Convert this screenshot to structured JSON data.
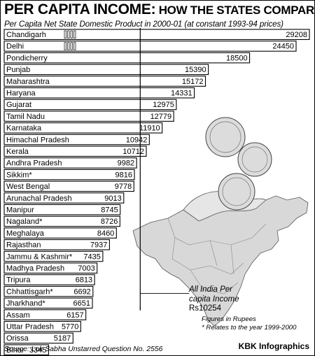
{
  "title_big": "PER CAPITA INCOME:",
  "title_small": " HOW THE STATES COMPARE",
  "subtitle": "Per Capita Net State Domestic Product in 2000-01 (at constant 1993-94 prices)",
  "avg_note": {
    "line1": "All India Per",
    "line2": "capita Income",
    "line3": "Rs10254"
  },
  "figures_note": {
    "line1": "Figures in Rupees",
    "line2": "* Relates to the year 1999-2000"
  },
  "source": "Source: Lok Sabha Unstarred Question No. 2556",
  "credit": "KBK Infographics",
  "chart_data": {
    "type": "bar",
    "orientation": "horizontal",
    "title": "PER CAPITA INCOME: HOW THE STATES COMPARE",
    "subtitle": "Per Capita Net State Domestic Product in 2000-01 (at constant 1993-94 prices)",
    "units": "Figures in Rupees",
    "reference_line": {
      "label": "All India Per capita Income",
      "value": 10254
    },
    "categories": [
      "Chandigarh",
      "Delhi",
      "Pondicherry",
      "Punjab",
      "Maharashtra",
      "Haryana",
      "Gujarat",
      "Tamil Nadu",
      "Karnataka",
      "Himachal Pradesh",
      "Kerala",
      "Andhra Pradesh",
      "Sikkim*",
      "West Bengal",
      "Arunachal Pradesh",
      "Manipur",
      "Nagaland*",
      "Meghalaya",
      "Rajasthan",
      "Jammu & Kashmir*",
      "Madhya Pradesh",
      "Tripura",
      "Chhattisgarh*",
      "Jharkhand*",
      "Assam",
      "Uttar Pradesh",
      "Orissa",
      "Bihar"
    ],
    "values": [
      29208,
      24450,
      18500,
      15390,
      15172,
      14331,
      12975,
      12779,
      11910,
      10942,
      10712,
      9982,
      9816,
      9778,
      9013,
      8745,
      8726,
      8460,
      7937,
      7435,
      7003,
      6813,
      6692,
      6651,
      6157,
      5770,
      5187,
      3345
    ],
    "value_labels": [
      "29208",
      "24450",
      "18500",
      "15390",
      "15172",
      "14331",
      "12975",
      "12779",
      "11910",
      "10942",
      "10712",
      "9982",
      "9816",
      "9778",
      "9013",
      "8745",
      "8726",
      "8460",
      "7937",
      "7435",
      "7003",
      "6813",
      "6692",
      "6651",
      "6157",
      "5770",
      "5187",
      "3345"
    ],
    "broken_axis_categories": [
      "Chandigarh",
      "Delhi"
    ],
    "colors": {
      "bar_fill": "#ffffff",
      "bar_stroke": "#000000",
      "label_fill": "#ffffff",
      "text": "#000000"
    }
  }
}
